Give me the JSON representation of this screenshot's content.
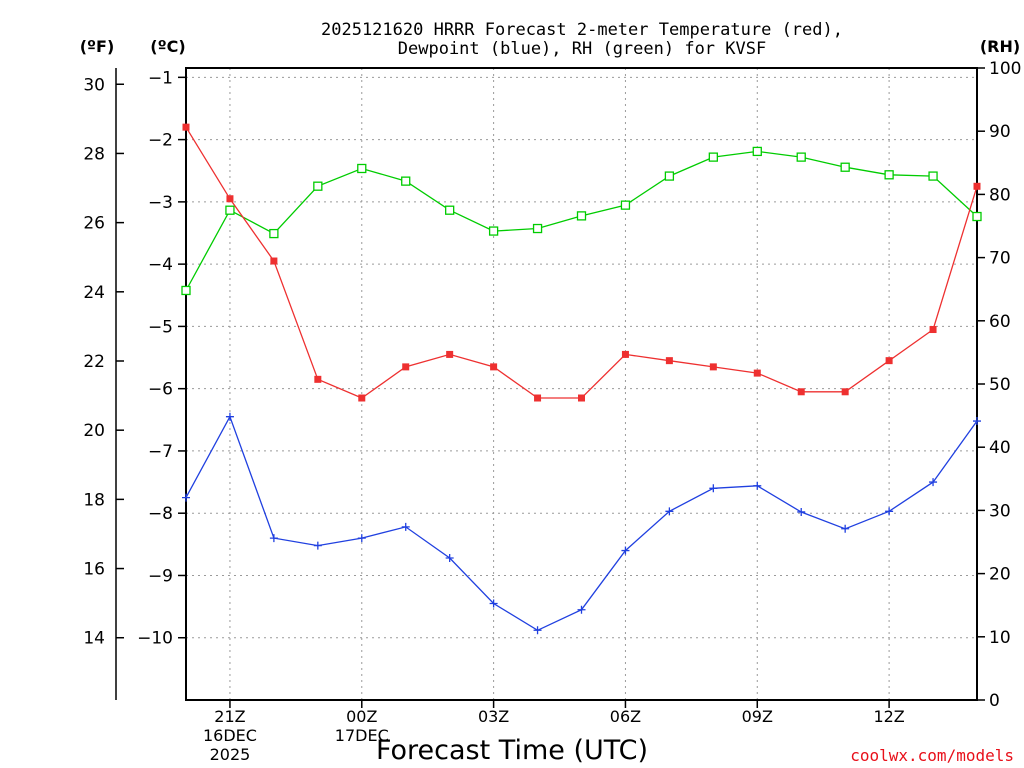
{
  "title_line1": "2025121620 HRRR Forecast 2-meter Temperature (red),",
  "title_line2": "Dewpoint (blue), RH (green) for KVSF",
  "unit_f": "(ºF)",
  "unit_c": "(ºC)",
  "unit_rh": "(RH)",
  "xlabel": "Forecast Time (UTC)",
  "credit": "coolwx.com/models",
  "colors": {
    "temp": "#ee3030",
    "dew": "#2040e0",
    "rh": "#00cc00"
  },
  "chart_data": {
    "type": "line",
    "title": "2025121620 HRRR Forecast 2-meter Temperature (red), Dewpoint (blue), RH (green) for KVSF",
    "x": [
      20,
      21,
      22,
      23,
      24,
      25,
      26,
      27,
      28,
      29,
      30,
      31,
      32,
      33,
      34,
      35,
      36,
      37,
      38
    ],
    "x_range": [
      20,
      38
    ],
    "x_ticks": [
      {
        "x": 21,
        "lines": [
          "21Z",
          "16DEC",
          "2025"
        ]
      },
      {
        "x": 24,
        "lines": [
          "00Z",
          "17DEC"
        ]
      },
      {
        "x": 27,
        "lines": [
          "03Z"
        ]
      },
      {
        "x": 30,
        "lines": [
          "06Z"
        ]
      },
      {
        "x": 33,
        "lines": [
          "09Z"
        ]
      },
      {
        "x": 36,
        "lines": [
          "12Z"
        ]
      }
    ],
    "y_celsius": {
      "label": "(ºC)",
      "range": [
        -11.0,
        -0.85
      ],
      "ticks": [
        "-1",
        "-2",
        "-3",
        "-4",
        "-5",
        "-6",
        "-7",
        "-8",
        "-9",
        "-10"
      ]
    },
    "y_fahrenheit": {
      "label": "(ºF)",
      "ticks": [
        "30",
        "28",
        "26",
        "24",
        "22",
        "20",
        "18",
        "16",
        "14"
      ]
    },
    "y_rh": {
      "label": "(RH)",
      "range": [
        0,
        100
      ],
      "ticks": [
        "0",
        "10",
        "20",
        "30",
        "40",
        "50",
        "60",
        "70",
        "80",
        "90",
        "100"
      ]
    },
    "series": [
      {
        "name": "2-meter Temperature",
        "axis": "celsius",
        "color": "red",
        "marker": "filled-square",
        "values": [
          -1.8,
          -2.95,
          -3.95,
          -5.85,
          -6.15,
          -5.65,
          -5.45,
          -5.65,
          -6.15,
          -6.15,
          -5.45,
          -5.55,
          -5.65,
          -5.75,
          -6.05,
          -6.05,
          -5.55,
          -5.05,
          -2.75
        ]
      },
      {
        "name": "Dewpoint",
        "axis": "celsius",
        "color": "blue",
        "marker": "plus",
        "values": [
          -7.75,
          -6.45,
          -8.4,
          -8.52,
          -8.4,
          -8.22,
          -8.72,
          -9.45,
          -9.88,
          -9.55,
          -8.6,
          -7.97,
          -7.6,
          -7.56,
          -7.98,
          -8.25,
          -7.97,
          -7.5,
          -6.52
        ]
      },
      {
        "name": "Relative Humidity",
        "axis": "rh",
        "color": "green",
        "marker": "open-square",
        "values": [
          64.8,
          77.5,
          73.8,
          81.3,
          84.1,
          82.1,
          77.5,
          74.2,
          74.6,
          76.6,
          78.3,
          82.9,
          85.9,
          86.8,
          85.9,
          84.3,
          83.1,
          82.9,
          76.5
        ]
      }
    ]
  }
}
